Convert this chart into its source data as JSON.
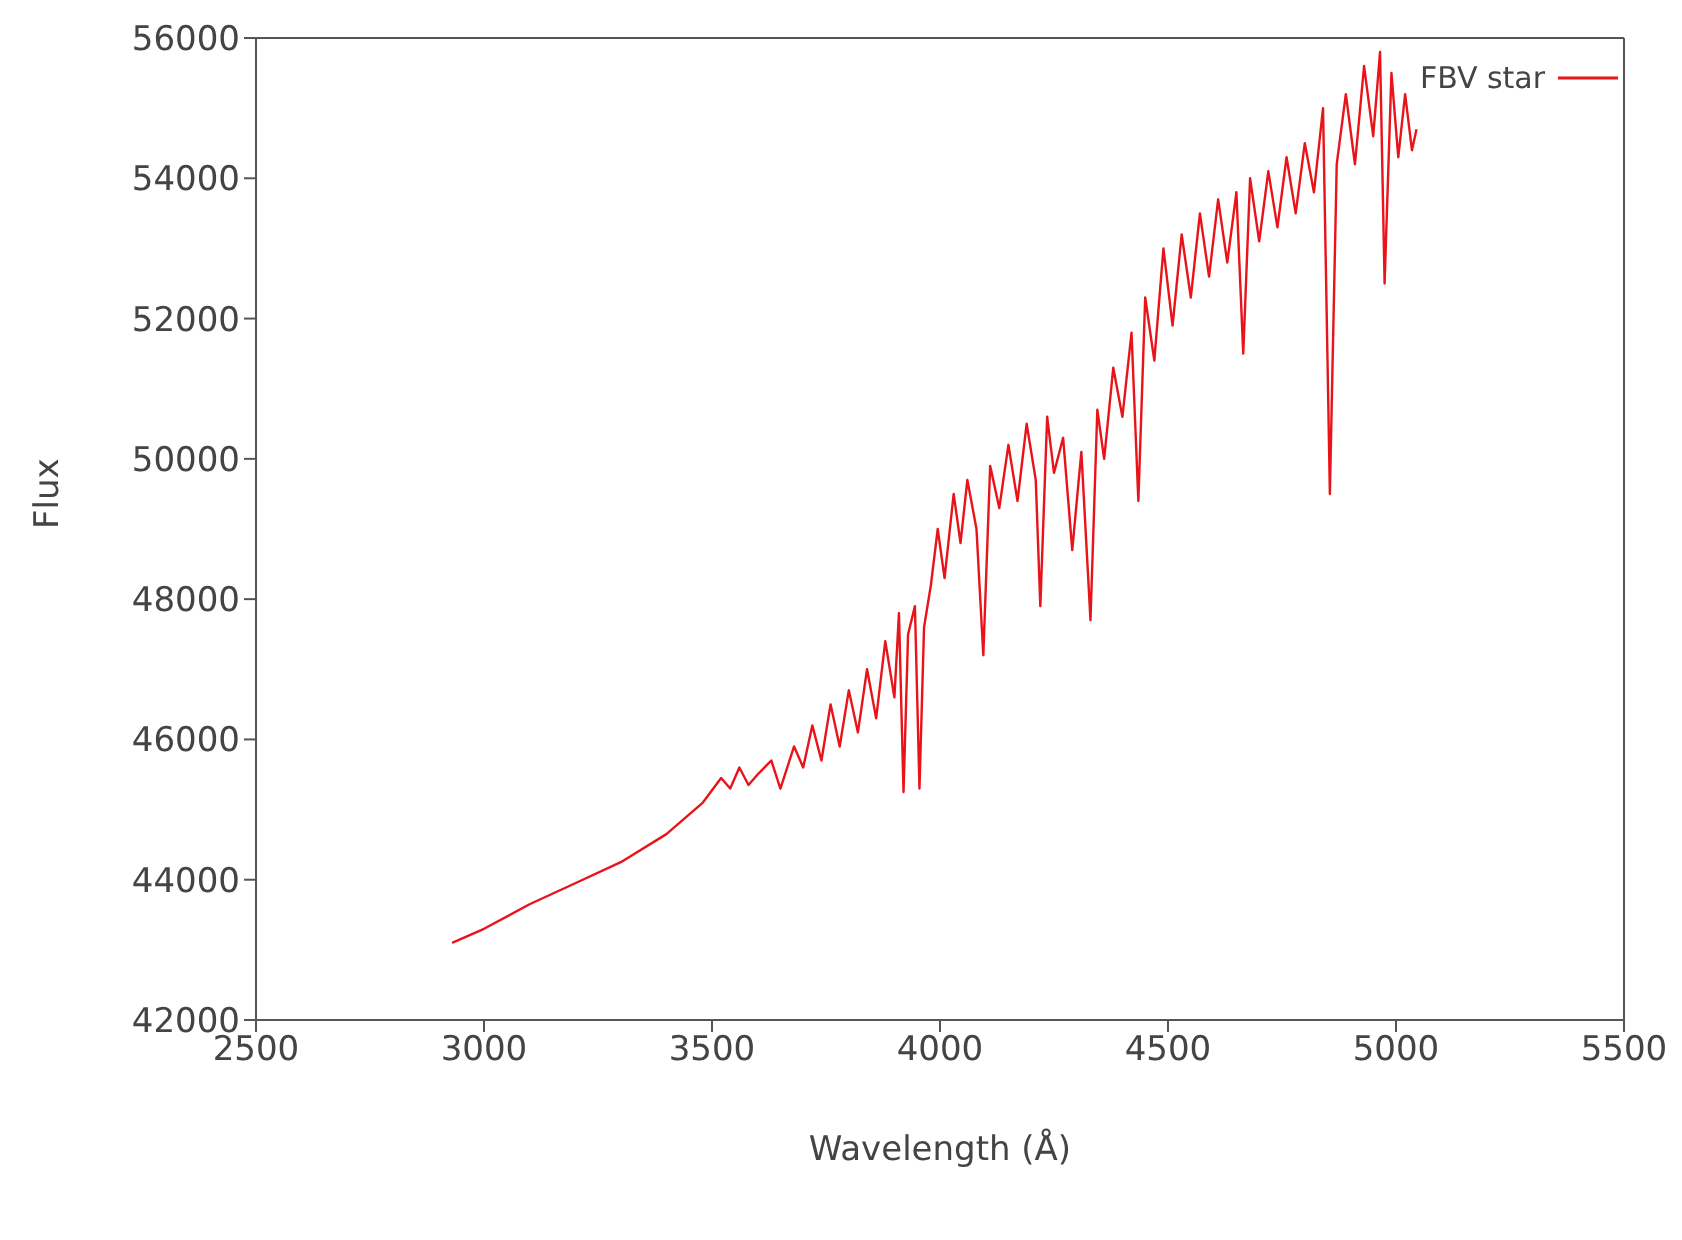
{
  "chart_data": {
    "type": "line",
    "xlabel": "Wavelength (Å)",
    "ylabel": "Flux",
    "xlim": [
      2500,
      5500
    ],
    "xticks": [
      2500,
      3000,
      3500,
      4000,
      4500,
      5000,
      5500
    ],
    "ylim": [
      42000,
      56000
    ],
    "yticks": [
      42000,
      44000,
      46000,
      48000,
      50000,
      52000,
      54000,
      56000
    ],
    "grid": false,
    "legend": "top right",
    "marker": "none",
    "line_style": "solid",
    "series": [
      {
        "name": "FBV star",
        "color": "#e8141a",
        "x": [
          2930,
          3000,
          3100,
          3200,
          3300,
          3400,
          3480,
          3520,
          3540,
          3560,
          3580,
          3600,
          3630,
          3650,
          3680,
          3700,
          3720,
          3740,
          3760,
          3780,
          3800,
          3820,
          3840,
          3860,
          3880,
          3900,
          3910,
          3920,
          3930,
          3945,
          3955,
          3965,
          3980,
          3995,
          4010,
          4030,
          4045,
          4060,
          4080,
          4095,
          4110,
          4130,
          4150,
          4170,
          4190,
          4210,
          4220,
          4235,
          4250,
          4270,
          4290,
          4310,
          4330,
          4345,
          4360,
          4380,
          4400,
          4420,
          4435,
          4450,
          4470,
          4490,
          4510,
          4530,
          4550,
          4570,
          4590,
          4610,
          4630,
          4650,
          4665,
          4680,
          4700,
          4720,
          4740,
          4760,
          4780,
          4800,
          4820,
          4840,
          4855,
          4870,
          4890,
          4910,
          4930,
          4950,
          4965,
          4975,
          4990,
          5005,
          5020,
          5035,
          5045
        ],
        "values": [
          43100,
          43300,
          43650,
          43950,
          44250,
          44650,
          45100,
          45450,
          45300,
          45600,
          45350,
          45500,
          45700,
          45300,
          45900,
          45600,
          46200,
          45700,
          46500,
          45900,
          46700,
          46100,
          47000,
          46300,
          47400,
          46600,
          47800,
          45250,
          47500,
          47900,
          45300,
          47600,
          48200,
          49000,
          48300,
          49500,
          48800,
          49700,
          49000,
          47200,
          49900,
          49300,
          50200,
          49400,
          50500,
          49700,
          47900,
          50600,
          49800,
          50300,
          48700,
          50100,
          47700,
          50700,
          50000,
          51300,
          50600,
          51800,
          49400,
          52300,
          51400,
          53000,
          51900,
          53200,
          52300,
          53500,
          52600,
          53700,
          52800,
          53800,
          51500,
          54000,
          53100,
          54100,
          53300,
          54300,
          53500,
          54500,
          53800,
          55000,
          49500,
          54200,
          55200,
          54200,
          55600,
          54600,
          55800,
          52500,
          55500,
          54300,
          55200,
          54400,
          54700
        ]
      }
    ]
  }
}
